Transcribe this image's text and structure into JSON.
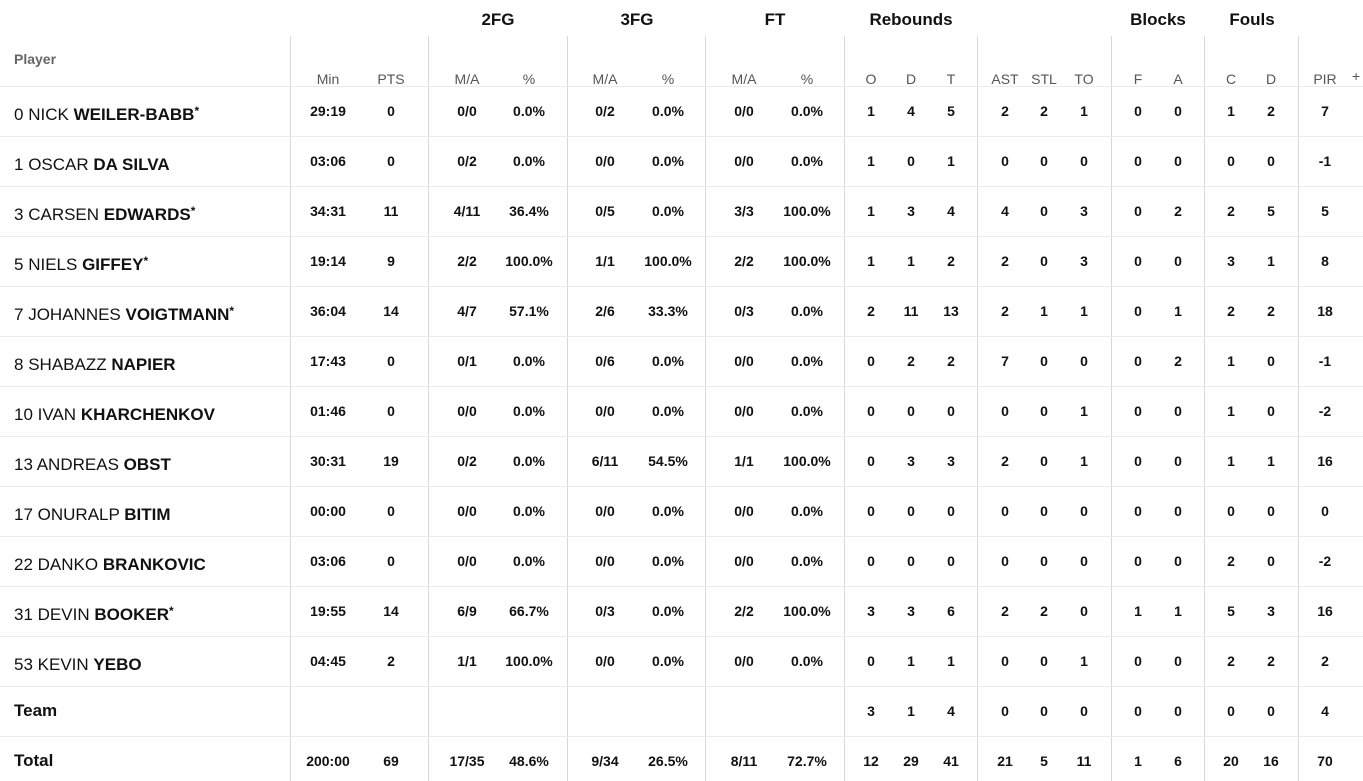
{
  "groups": {
    "fg2": "2FG",
    "fg3": "3FG",
    "ft": "FT",
    "rebounds": "Rebounds",
    "blocks": "Blocks",
    "fouls": "Fouls"
  },
  "columns": {
    "player": "Player",
    "min": "Min",
    "pts": "PTS",
    "fg2_ma": "M/A",
    "fg2_pct": "%",
    "fg3_ma": "M/A",
    "fg3_pct": "%",
    "ft_ma": "M/A",
    "ft_pct": "%",
    "reb_o": "O",
    "reb_d": "D",
    "reb_t": "T",
    "ast": "AST",
    "stl": "STL",
    "to": "TO",
    "blk_f": "F",
    "blk_a": "A",
    "foul_c": "C",
    "foul_d": "D",
    "pir": "PIR",
    "expand": "+"
  },
  "players": [
    {
      "num": "0",
      "first": "NICK",
      "last": "WEILER-BABB",
      "star": "*",
      "min": "29:19",
      "pts": "0",
      "fg2_ma": "0/0",
      "fg2_pct": "0.0%",
      "fg3_ma": "0/2",
      "fg3_pct": "0.0%",
      "ft_ma": "0/0",
      "ft_pct": "0.0%",
      "reb_o": "1",
      "reb_d": "4",
      "reb_t": "5",
      "ast": "2",
      "stl": "2",
      "to": "1",
      "blk_f": "0",
      "blk_a": "0",
      "foul_c": "1",
      "foul_d": "2",
      "pir": "7"
    },
    {
      "num": "1",
      "first": "OSCAR",
      "last": "DA SILVA",
      "star": "",
      "min": "03:06",
      "pts": "0",
      "fg2_ma": "0/2",
      "fg2_pct": "0.0%",
      "fg3_ma": "0/0",
      "fg3_pct": "0.0%",
      "ft_ma": "0/0",
      "ft_pct": "0.0%",
      "reb_o": "1",
      "reb_d": "0",
      "reb_t": "1",
      "ast": "0",
      "stl": "0",
      "to": "0",
      "blk_f": "0",
      "blk_a": "0",
      "foul_c": "0",
      "foul_d": "0",
      "pir": "-1"
    },
    {
      "num": "3",
      "first": "CARSEN",
      "last": "EDWARDS",
      "star": "*",
      "min": "34:31",
      "pts": "11",
      "fg2_ma": "4/11",
      "fg2_pct": "36.4%",
      "fg3_ma": "0/5",
      "fg3_pct": "0.0%",
      "ft_ma": "3/3",
      "ft_pct": "100.0%",
      "reb_o": "1",
      "reb_d": "3",
      "reb_t": "4",
      "ast": "4",
      "stl": "0",
      "to": "3",
      "blk_f": "0",
      "blk_a": "2",
      "foul_c": "2",
      "foul_d": "5",
      "pir": "5"
    },
    {
      "num": "5",
      "first": "NIELS",
      "last": "GIFFEY",
      "star": "*",
      "min": "19:14",
      "pts": "9",
      "fg2_ma": "2/2",
      "fg2_pct": "100.0%",
      "fg3_ma": "1/1",
      "fg3_pct": "100.0%",
      "ft_ma": "2/2",
      "ft_pct": "100.0%",
      "reb_o": "1",
      "reb_d": "1",
      "reb_t": "2",
      "ast": "2",
      "stl": "0",
      "to": "3",
      "blk_f": "0",
      "blk_a": "0",
      "foul_c": "3",
      "foul_d": "1",
      "pir": "8"
    },
    {
      "num": "7",
      "first": "JOHANNES",
      "last": "VOIGTMANN",
      "star": "*",
      "min": "36:04",
      "pts": "14",
      "fg2_ma": "4/7",
      "fg2_pct": "57.1%",
      "fg3_ma": "2/6",
      "fg3_pct": "33.3%",
      "ft_ma": "0/3",
      "ft_pct": "0.0%",
      "reb_o": "2",
      "reb_d": "11",
      "reb_t": "13",
      "ast": "2",
      "stl": "1",
      "to": "1",
      "blk_f": "0",
      "blk_a": "1",
      "foul_c": "2",
      "foul_d": "2",
      "pir": "18"
    },
    {
      "num": "8",
      "first": "SHABAZZ",
      "last": "NAPIER",
      "star": "",
      "min": "17:43",
      "pts": "0",
      "fg2_ma": "0/1",
      "fg2_pct": "0.0%",
      "fg3_ma": "0/6",
      "fg3_pct": "0.0%",
      "ft_ma": "0/0",
      "ft_pct": "0.0%",
      "reb_o": "0",
      "reb_d": "2",
      "reb_t": "2",
      "ast": "7",
      "stl": "0",
      "to": "0",
      "blk_f": "0",
      "blk_a": "2",
      "foul_c": "1",
      "foul_d": "0",
      "pir": "-1"
    },
    {
      "num": "10",
      "first": "IVAN",
      "last": "KHARCHENKOV",
      "star": "",
      "min": "01:46",
      "pts": "0",
      "fg2_ma": "0/0",
      "fg2_pct": "0.0%",
      "fg3_ma": "0/0",
      "fg3_pct": "0.0%",
      "ft_ma": "0/0",
      "ft_pct": "0.0%",
      "reb_o": "0",
      "reb_d": "0",
      "reb_t": "0",
      "ast": "0",
      "stl": "0",
      "to": "1",
      "blk_f": "0",
      "blk_a": "0",
      "foul_c": "1",
      "foul_d": "0",
      "pir": "-2"
    },
    {
      "num": "13",
      "first": "ANDREAS",
      "last": "OBST",
      "star": "",
      "min": "30:31",
      "pts": "19",
      "fg2_ma": "0/2",
      "fg2_pct": "0.0%",
      "fg3_ma": "6/11",
      "fg3_pct": "54.5%",
      "ft_ma": "1/1",
      "ft_pct": "100.0%",
      "reb_o": "0",
      "reb_d": "3",
      "reb_t": "3",
      "ast": "2",
      "stl": "0",
      "to": "1",
      "blk_f": "0",
      "blk_a": "0",
      "foul_c": "1",
      "foul_d": "1",
      "pir": "16"
    },
    {
      "num": "17",
      "first": "ONURALP",
      "last": "BITIM",
      "star": "",
      "min": "00:00",
      "pts": "0",
      "fg2_ma": "0/0",
      "fg2_pct": "0.0%",
      "fg3_ma": "0/0",
      "fg3_pct": "0.0%",
      "ft_ma": "0/0",
      "ft_pct": "0.0%",
      "reb_o": "0",
      "reb_d": "0",
      "reb_t": "0",
      "ast": "0",
      "stl": "0",
      "to": "0",
      "blk_f": "0",
      "blk_a": "0",
      "foul_c": "0",
      "foul_d": "0",
      "pir": "0"
    },
    {
      "num": "22",
      "first": "DANKO",
      "last": "BRANKOVIC",
      "star": "",
      "min": "03:06",
      "pts": "0",
      "fg2_ma": "0/0",
      "fg2_pct": "0.0%",
      "fg3_ma": "0/0",
      "fg3_pct": "0.0%",
      "ft_ma": "0/0",
      "ft_pct": "0.0%",
      "reb_o": "0",
      "reb_d": "0",
      "reb_t": "0",
      "ast": "0",
      "stl": "0",
      "to": "0",
      "blk_f": "0",
      "blk_a": "0",
      "foul_c": "2",
      "foul_d": "0",
      "pir": "-2"
    },
    {
      "num": "31",
      "first": "DEVIN",
      "last": "BOOKER",
      "star": "*",
      "min": "19:55",
      "pts": "14",
      "fg2_ma": "6/9",
      "fg2_pct": "66.7%",
      "fg3_ma": "0/3",
      "fg3_pct": "0.0%",
      "ft_ma": "2/2",
      "ft_pct": "100.0%",
      "reb_o": "3",
      "reb_d": "3",
      "reb_t": "6",
      "ast": "2",
      "stl": "2",
      "to": "0",
      "blk_f": "1",
      "blk_a": "1",
      "foul_c": "5",
      "foul_d": "3",
      "pir": "16"
    },
    {
      "num": "53",
      "first": "KEVIN",
      "last": "YEBO",
      "star": "",
      "min": "04:45",
      "pts": "2",
      "fg2_ma": "1/1",
      "fg2_pct": "100.0%",
      "fg3_ma": "0/0",
      "fg3_pct": "0.0%",
      "ft_ma": "0/0",
      "ft_pct": "0.0%",
      "reb_o": "0",
      "reb_d": "1",
      "reb_t": "1",
      "ast": "0",
      "stl": "0",
      "to": "1",
      "blk_f": "0",
      "blk_a": "0",
      "foul_c": "2",
      "foul_d": "2",
      "pir": "2"
    }
  ],
  "team": {
    "label": "Team",
    "min": "",
    "pts": "",
    "fg2_ma": "",
    "fg2_pct": "",
    "fg3_ma": "",
    "fg3_pct": "",
    "ft_ma": "",
    "ft_pct": "",
    "reb_o": "3",
    "reb_d": "1",
    "reb_t": "4",
    "ast": "0",
    "stl": "0",
    "to": "0",
    "blk_f": "0",
    "blk_a": "0",
    "foul_c": "0",
    "foul_d": "0",
    "pir": "4"
  },
  "total": {
    "label": "Total",
    "min": "200:00",
    "pts": "69",
    "fg2_ma": "17/35",
    "fg2_pct": "48.6%",
    "fg3_ma": "9/34",
    "fg3_pct": "26.5%",
    "ft_ma": "8/11",
    "ft_pct": "72.7%",
    "reb_o": "12",
    "reb_d": "29",
    "reb_t": "41",
    "ast": "21",
    "stl": "5",
    "to": "11",
    "blk_f": "1",
    "blk_a": "6",
    "foul_c": "20",
    "foul_d": "16",
    "pir": "70"
  }
}
